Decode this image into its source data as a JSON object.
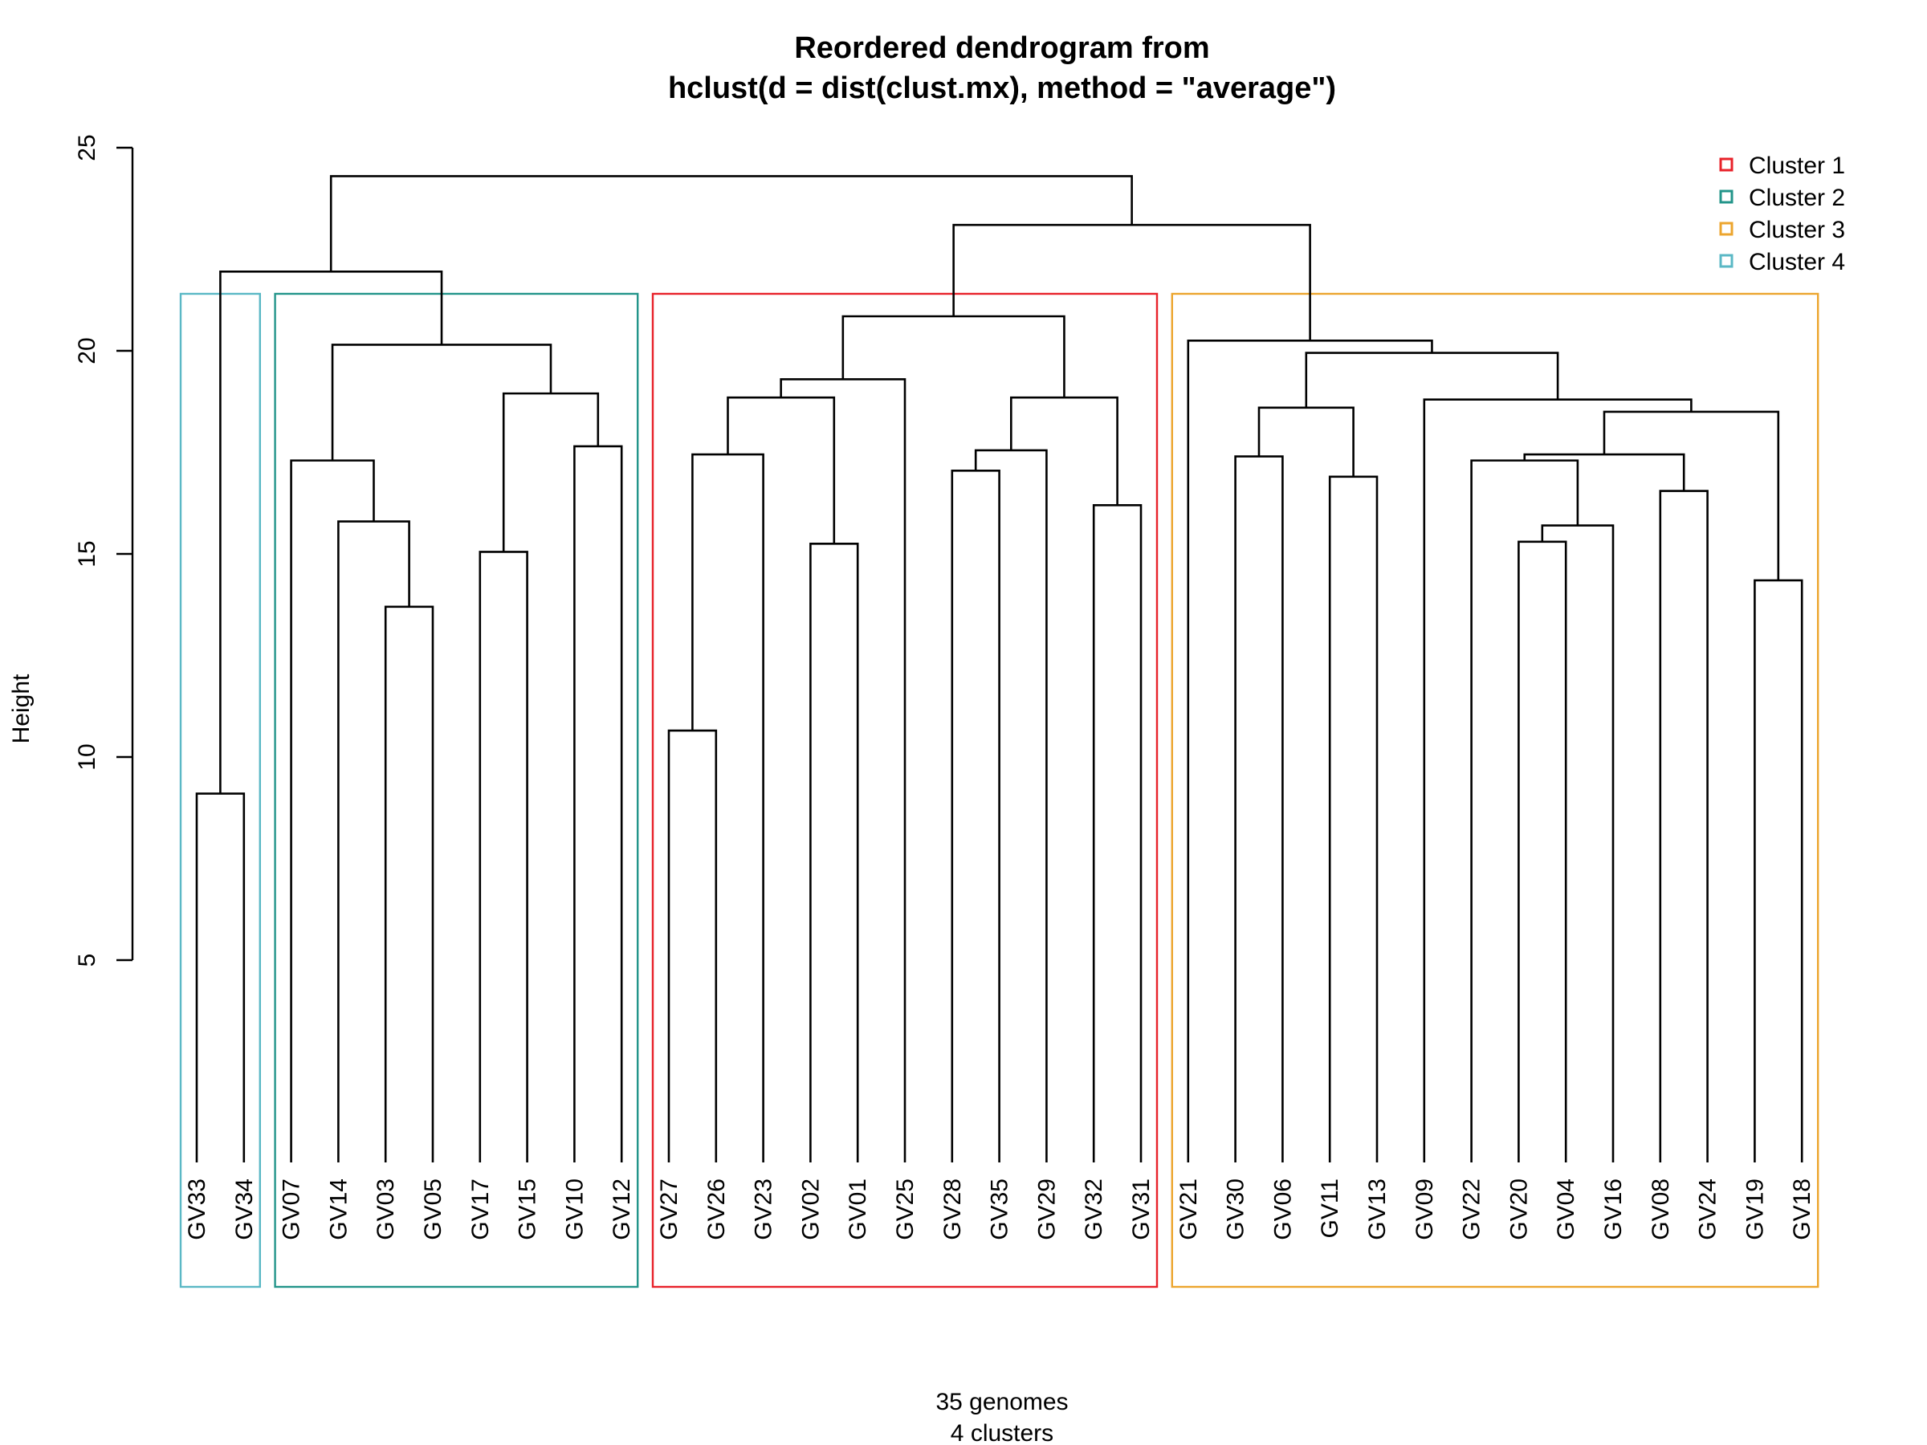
{
  "chart_data": {
    "type": "dendrogram",
    "title": [
      "Reordered dendrogram from",
      "hclust(d = dist(clust.mx), method = \"average\")"
    ],
    "ylabel": "Height",
    "xlabel": [
      "35 genomes",
      "4 clusters"
    ],
    "yticks": [
      5,
      10,
      15,
      20,
      25
    ],
    "leaves": [
      "GV33",
      "GV34",
      "GV07",
      "GV14",
      "GV03",
      "GV05",
      "GV17",
      "GV15",
      "GV10",
      "GV12",
      "GV27",
      "GV26",
      "GV23",
      "GV02",
      "GV01",
      "GV25",
      "GV28",
      "GV35",
      "GV29",
      "GV32",
      "GV31",
      "GV21",
      "GV30",
      "GV06",
      "GV11",
      "GV13",
      "GV09",
      "GV22",
      "GV20",
      "GV04",
      "GV16",
      "GV08",
      "GV24",
      "GV19",
      "GV18"
    ],
    "merges": [
      {
        "id": "a1",
        "children": [
          "GV33",
          "GV34"
        ],
        "height": 9.1
      },
      {
        "id": "b1",
        "children": [
          "GV03",
          "GV05"
        ],
        "height": 13.7
      },
      {
        "id": "b2",
        "children": [
          "GV14",
          "b1"
        ],
        "height": 15.8
      },
      {
        "id": "b3",
        "children": [
          "GV07",
          "b2"
        ],
        "height": 17.3
      },
      {
        "id": "b4",
        "children": [
          "GV17",
          "GV15"
        ],
        "height": 15.05
      },
      {
        "id": "b5",
        "children": [
          "GV10",
          "GV12"
        ],
        "height": 17.65
      },
      {
        "id": "b6",
        "children": [
          "b4",
          "b5"
        ],
        "height": 18.95
      },
      {
        "id": "b7",
        "children": [
          "b3",
          "b6"
        ],
        "height": 20.15
      },
      {
        "id": "c1",
        "children": [
          "GV27",
          "GV26"
        ],
        "height": 10.65
      },
      {
        "id": "c2",
        "children": [
          "c1",
          "GV23"
        ],
        "height": 17.45
      },
      {
        "id": "c3",
        "children": [
          "GV02",
          "GV01"
        ],
        "height": 15.25
      },
      {
        "id": "c4",
        "children": [
          "c2",
          "c3"
        ],
        "height": 18.85
      },
      {
        "id": "c5",
        "children": [
          "c4",
          "GV25"
        ],
        "height": 19.3
      },
      {
        "id": "c6",
        "children": [
          "GV28",
          "GV35"
        ],
        "height": 17.05
      },
      {
        "id": "c7",
        "children": [
          "c6",
          "GV29"
        ],
        "height": 17.55
      },
      {
        "id": "c8",
        "children": [
          "GV32",
          "GV31"
        ],
        "height": 16.2
      },
      {
        "id": "c9",
        "children": [
          "c7",
          "c8"
        ],
        "height": 18.85
      },
      {
        "id": "c10",
        "children": [
          "c5",
          "c9"
        ],
        "height": 20.85
      },
      {
        "id": "d1",
        "children": [
          "GV30",
          "GV06"
        ],
        "height": 17.4
      },
      {
        "id": "d2",
        "children": [
          "GV11",
          "GV13"
        ],
        "height": 16.9
      },
      {
        "id": "d3",
        "children": [
          "d1",
          "d2"
        ],
        "height": 18.6
      },
      {
        "id": "d4",
        "children": [
          "GV20",
          "GV04"
        ],
        "height": 15.3
      },
      {
        "id": "d5",
        "children": [
          "d4",
          "GV16"
        ],
        "height": 15.7
      },
      {
        "id": "d6",
        "children": [
          "GV22",
          "d5"
        ],
        "height": 17.3
      },
      {
        "id": "d7",
        "children": [
          "GV08",
          "GV24"
        ],
        "height": 16.55
      },
      {
        "id": "d8",
        "children": [
          "d6",
          "d7"
        ],
        "height": 17.45
      },
      {
        "id": "d9",
        "children": [
          "GV19",
          "GV18"
        ],
        "height": 14.35
      },
      {
        "id": "d10",
        "children": [
          "d8",
          "d9"
        ],
        "height": 18.5
      },
      {
        "id": "d11",
        "children": [
          "GV09",
          "d10"
        ],
        "height": 18.8
      },
      {
        "id": "d12",
        "children": [
          "d3",
          "d11"
        ],
        "height": 19.95
      },
      {
        "id": "d13",
        "children": [
          "GV21",
          "d12"
        ],
        "height": 20.25
      },
      {
        "id": "e1",
        "children": [
          "c10",
          "d13"
        ],
        "height": 23.1
      },
      {
        "id": "e2",
        "children": [
          "a1",
          "b7"
        ],
        "height": 21.95
      },
      {
        "id": "e3",
        "children": [
          "e2",
          "e1"
        ],
        "height": 24.3
      }
    ],
    "clusters": [
      {
        "name": "Cluster 1",
        "color": "#e8222a",
        "first": "GV27",
        "last": "GV31"
      },
      {
        "name": "Cluster 2",
        "color": "#23958a",
        "first": "GV07",
        "last": "GV12"
      },
      {
        "name": "Cluster 3",
        "color": "#eca52e",
        "first": "GV21",
        "last": "GV18"
      },
      {
        "name": "Cluster 4",
        "color": "#5ab8c5",
        "first": "GV33",
        "last": "GV34"
      }
    ],
    "legend": {
      "position": "top-right",
      "items": [
        "Cluster 1",
        "Cluster 2",
        "Cluster 3",
        "Cluster 4"
      ]
    }
  }
}
